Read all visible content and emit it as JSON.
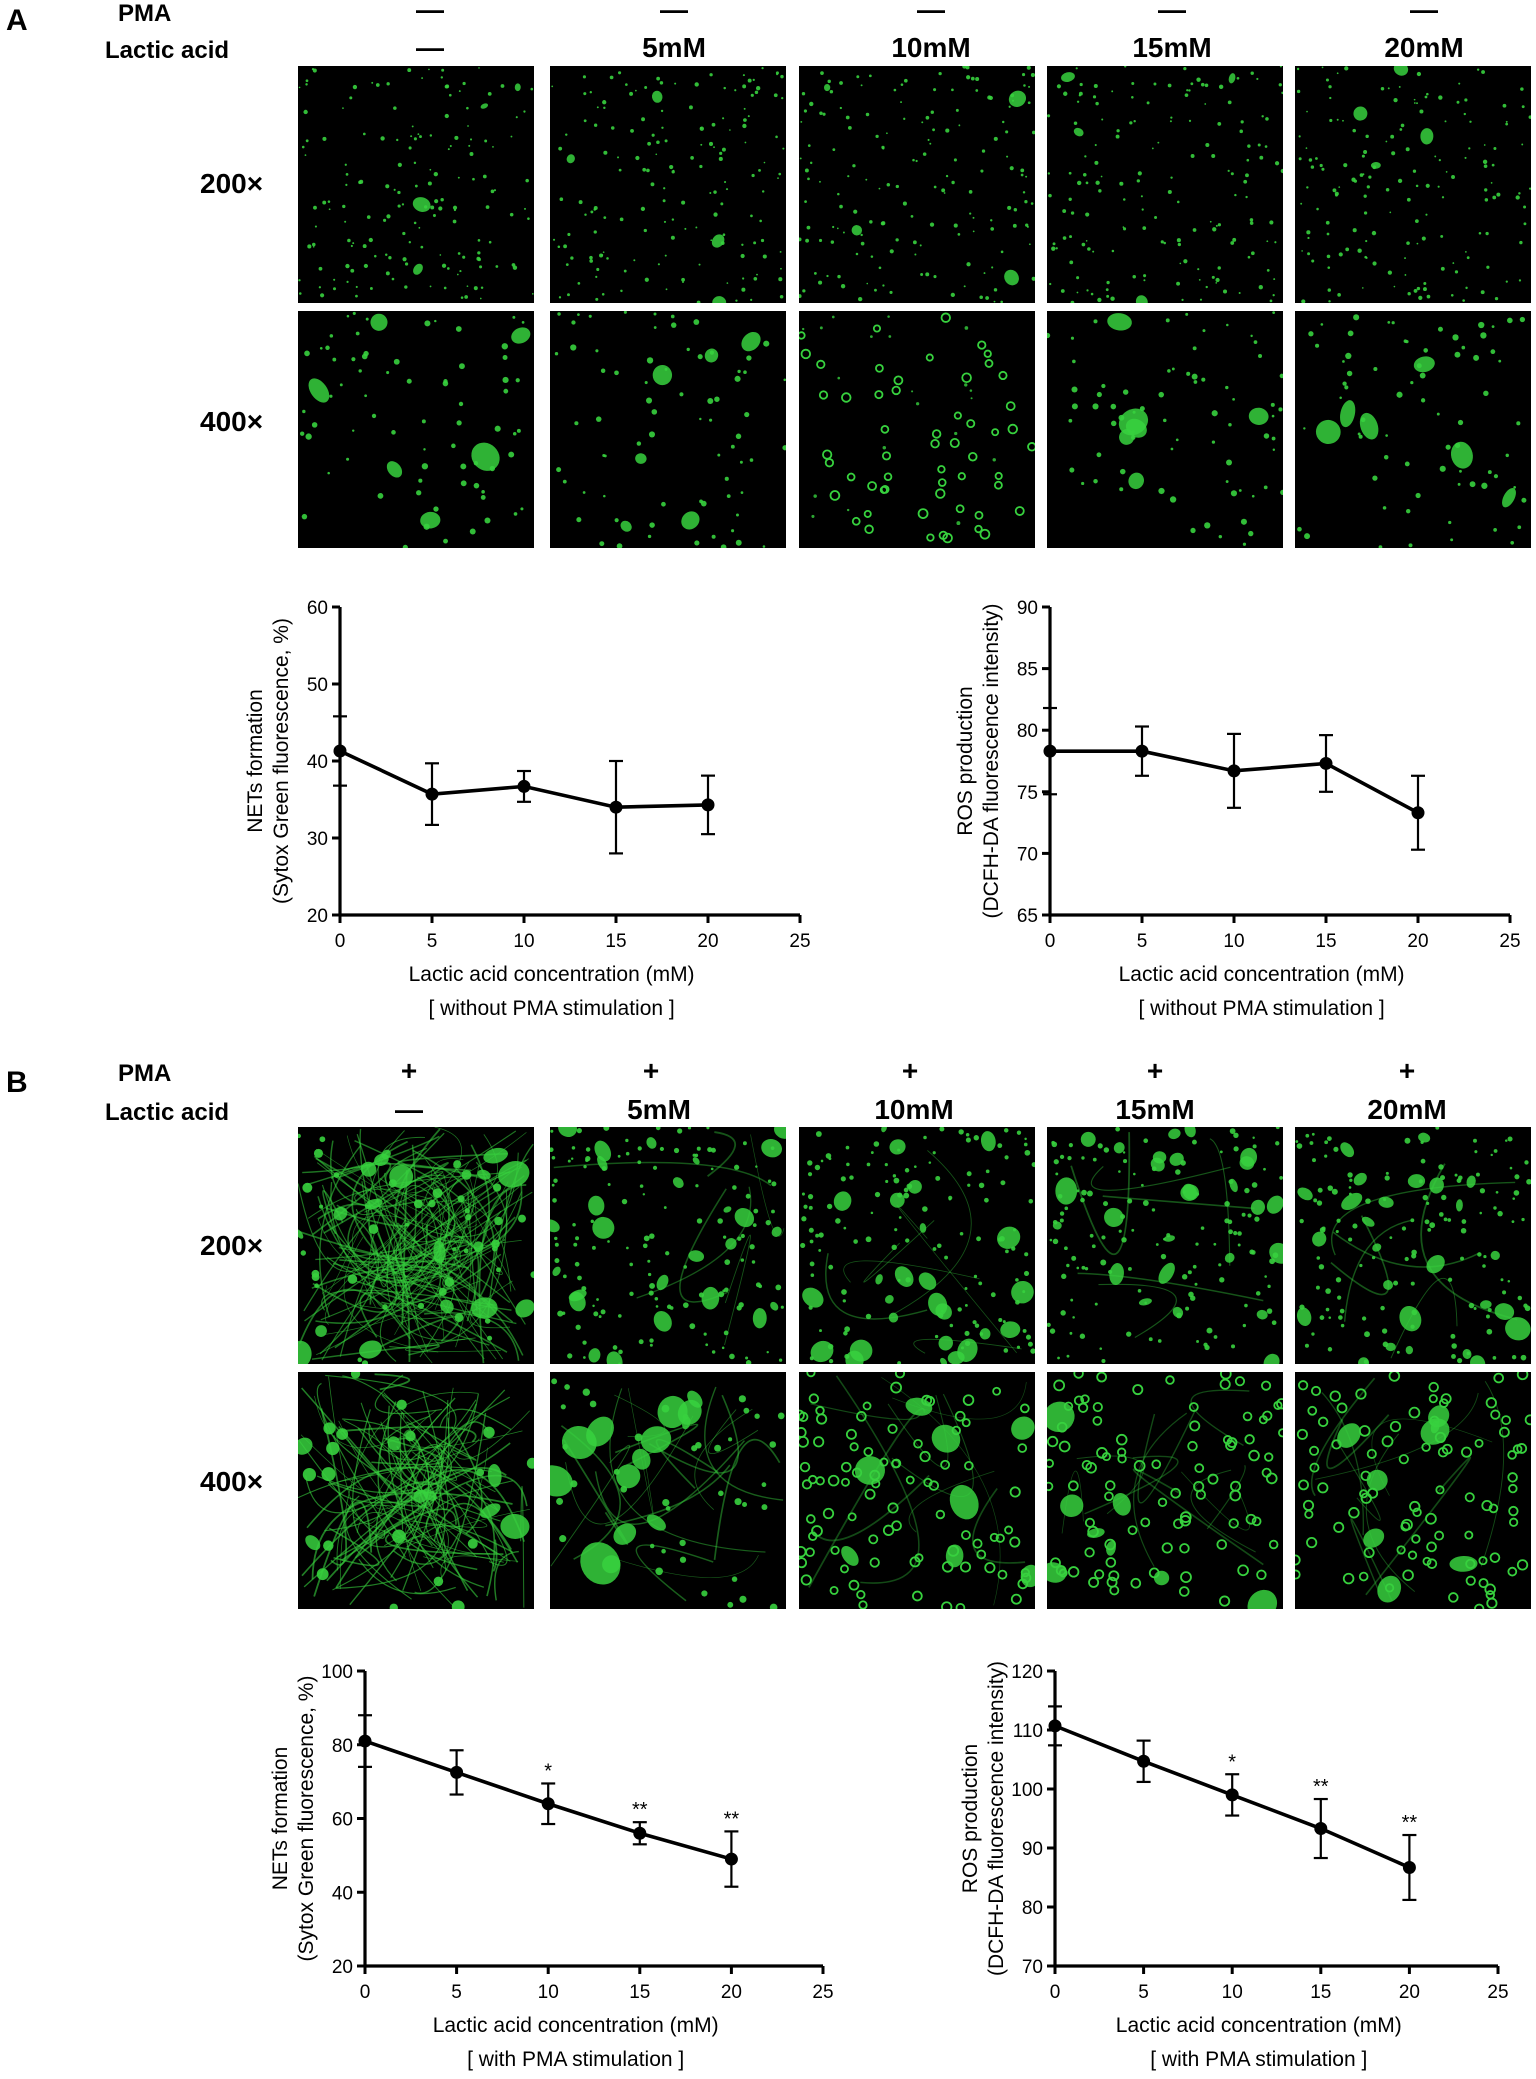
{
  "panels": [
    {
      "letter": "A",
      "pma_label": "PMA",
      "lactic_label": "Lactic acid",
      "pma_values": [
        "—",
        "—",
        "—",
        "—",
        "—"
      ],
      "lactic_values": [
        "—",
        "5mM",
        "10mM",
        "15mM",
        "20mM"
      ],
      "magnifications": [
        "200×",
        "400×"
      ]
    },
    {
      "letter": "B",
      "pma_label": "PMA",
      "lactic_label": "Lactic acid",
      "pma_values": [
        "+",
        "+",
        "+",
        "+",
        "+"
      ],
      "lactic_values": [
        "—",
        "5mM",
        "10mM",
        "15mM",
        "20mM"
      ],
      "magnifications": [
        "200×",
        "400×"
      ]
    }
  ],
  "colors": {
    "fluorescence": "#37d13e",
    "background": "#000000",
    "line": "#000000"
  },
  "chart_data": [
    {
      "type": "line",
      "ylabel_line1": "NETs formation",
      "ylabel_line2": "(Sytox Green fluorescence, %)",
      "xlabel": "Lactic acid concentration (mM)",
      "subcaption": "[ without PMA stimulation ]",
      "xlim": [
        0,
        25
      ],
      "ylim": [
        20,
        60
      ],
      "xticks": [
        0,
        5,
        10,
        15,
        20,
        25
      ],
      "yticks": [
        20,
        30,
        40,
        50,
        60
      ],
      "x": [
        0,
        5,
        10,
        15,
        20
      ],
      "y": [
        41.3,
        35.7,
        36.7,
        34.0,
        34.3
      ],
      "err": [
        4.5,
        4.0,
        2.0,
        6.0,
        3.8
      ],
      "annotations": [
        "",
        "",
        "",
        "",
        ""
      ]
    },
    {
      "type": "line",
      "ylabel_line1": "ROS production",
      "ylabel_line2": "(DCFH-DA fluorescence intensity)",
      "xlabel": "Lactic acid concentration (mM)",
      "subcaption": "[ without PMA stimulation ]",
      "xlim": [
        0,
        25
      ],
      "ylim": [
        65,
        90
      ],
      "xticks": [
        0,
        5,
        10,
        15,
        20,
        25
      ],
      "yticks": [
        65,
        70,
        75,
        80,
        85,
        90
      ],
      "x": [
        0,
        5,
        10,
        15,
        20
      ],
      "y": [
        78.3,
        78.3,
        76.7,
        77.3,
        73.3
      ],
      "err": [
        3.5,
        2.0,
        3.0,
        2.3,
        3.0
      ],
      "annotations": [
        "",
        "",
        "",
        "",
        ""
      ]
    },
    {
      "type": "line",
      "ylabel_line1": "NETs formation",
      "ylabel_line2": "(Sytox Green fluorescence, %)",
      "xlabel": "Lactic acid concentration (mM)",
      "subcaption": "[ with PMA stimulation ]",
      "xlim": [
        0,
        25
      ],
      "ylim": [
        20,
        100
      ],
      "xticks": [
        0,
        5,
        10,
        15,
        20,
        25
      ],
      "yticks": [
        20,
        40,
        60,
        80,
        100
      ],
      "x": [
        0,
        5,
        10,
        15,
        20
      ],
      "y": [
        81,
        72.5,
        64,
        56,
        49
      ],
      "err": [
        7,
        6,
        5.5,
        3,
        7.5
      ],
      "annotations": [
        "",
        "",
        "*",
        "**",
        "**"
      ]
    },
    {
      "type": "line",
      "ylabel_line1": "ROS production",
      "ylabel_line2": "(DCFH-DA fluorescence intensity)",
      "xlabel": "Lactic acid concentration (mM)",
      "subcaption": "[ with PMA stimulation ]",
      "xlim": [
        0,
        25
      ],
      "ylim": [
        70,
        120
      ],
      "xticks": [
        0,
        5,
        10,
        15,
        20,
        25
      ],
      "yticks": [
        70,
        80,
        90,
        100,
        110,
        120
      ],
      "x": [
        0,
        5,
        10,
        15,
        20
      ],
      "y": [
        110.7,
        104.7,
        99,
        93.3,
        86.7
      ],
      "err": [
        3.3,
        3.5,
        3.5,
        5,
        5.5
      ],
      "annotations": [
        "",
        "",
        "*",
        "**",
        "**"
      ]
    }
  ]
}
